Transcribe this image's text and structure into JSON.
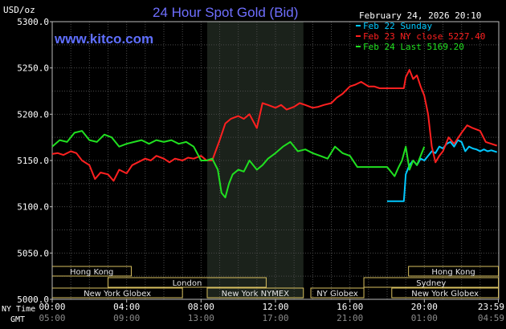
{
  "chart_data": {
    "type": "line",
    "title": "24 Hour Spot Gold (Bid)",
    "source": "www.kitco.com",
    "date_stamp": "February 24, 2026 20:10",
    "ylabel": "USD/oz",
    "ylim": [
      5000.0,
      5300.0
    ],
    "yticks": [
      "5000.0",
      "5050.0",
      "5100.0",
      "5150.0",
      "5200.0",
      "5250.0",
      "5300.0"
    ],
    "ytick_values": [
      5000,
      5050,
      5100,
      5150,
      5200,
      5250,
      5300
    ],
    "xlim": [
      0,
      24
    ],
    "xaxis_row_labels": [
      "NY Time",
      "GMT"
    ],
    "xticks_ny": [
      "00:00",
      "04:00",
      "08:00",
      "12:00",
      "16:00",
      "20:00",
      "23:59"
    ],
    "xticks_gmt": [
      "05:00",
      "09:00",
      "13:00",
      "17:00",
      "21:00",
      "01:00",
      "04:59"
    ],
    "xtick_hours": [
      0,
      4,
      8,
      12,
      16,
      20,
      23.98
    ],
    "grid": true,
    "shaded_hours": [
      8.33,
      13.5
    ],
    "legend_position": "top-right",
    "legend": [
      {
        "label": "Feb 22 Sunday",
        "color": "#00c8ff"
      },
      {
        "label": "Feb 23 NY close 5227.40",
        "color": "#ff2020"
      },
      {
        "label": "Feb 24 Last 5169.20",
        "color": "#20e020"
      }
    ],
    "series": [
      {
        "name": "Feb 22 Sunday",
        "color": "#00c8ff",
        "x": [
          18.0,
          18.9,
          18.95,
          19.0,
          19.2,
          19.4,
          19.6,
          19.8,
          20.0,
          20.2,
          20.4,
          20.6,
          20.8,
          21.0,
          21.2,
          21.4,
          21.6,
          21.8,
          22.0,
          22.2,
          22.4,
          22.6,
          22.8,
          23.0,
          23.2,
          23.4,
          23.6,
          23.9
        ],
        "y": [
          5106,
          5106,
          5120,
          5135,
          5145,
          5150,
          5145,
          5152,
          5150,
          5155,
          5160,
          5158,
          5165,
          5163,
          5168,
          5170,
          5165,
          5172,
          5170,
          5160,
          5165,
          5163,
          5162,
          5160,
          5162,
          5160,
          5161,
          5159
        ]
      },
      {
        "name": "Feb 23 NY close 5227.40",
        "color": "#ff2020",
        "x": [
          0.0,
          0.3,
          0.6,
          1.0,
          1.3,
          1.6,
          2.0,
          2.3,
          2.6,
          3.0,
          3.3,
          3.6,
          4.0,
          4.3,
          4.6,
          5.0,
          5.3,
          5.6,
          6.0,
          6.3,
          6.6,
          7.0,
          7.3,
          7.6,
          8.0,
          8.3,
          8.6,
          9.0,
          9.3,
          9.6,
          10.0,
          10.3,
          10.6,
          11.0,
          11.3,
          11.6,
          12.0,
          12.3,
          12.6,
          13.0,
          13.3,
          13.6,
          14.0,
          14.3,
          14.6,
          15.0,
          15.3,
          15.6,
          16.0,
          16.3,
          16.6,
          17.0,
          17.3,
          17.6,
          18.0,
          18.3,
          18.6,
          18.9,
          19.0,
          19.2,
          19.4,
          19.6,
          19.8,
          20.0,
          20.2,
          20.4,
          20.6,
          20.8,
          21.0,
          21.3,
          21.6,
          22.0,
          22.3,
          22.6,
          23.0,
          23.3,
          23.6,
          23.9
        ],
        "y": [
          5157,
          5158,
          5156,
          5160,
          5158,
          5150,
          5145,
          5130,
          5137,
          5135,
          5128,
          5140,
          5136,
          5145,
          5148,
          5152,
          5150,
          5155,
          5152,
          5148,
          5152,
          5150,
          5153,
          5152,
          5155,
          5150,
          5150,
          5172,
          5190,
          5195,
          5198,
          5195,
          5200,
          5185,
          5212,
          5210,
          5207,
          5210,
          5205,
          5208,
          5212,
          5210,
          5207,
          5208,
          5210,
          5212,
          5218,
          5222,
          5230,
          5232,
          5235,
          5230,
          5230,
          5228,
          5228,
          5228,
          5228,
          5228,
          5240,
          5248,
          5238,
          5242,
          5230,
          5220,
          5200,
          5165,
          5148,
          5155,
          5160,
          5175,
          5168,
          5180,
          5188,
          5185,
          5182,
          5170,
          5168,
          5166
        ]
      },
      {
        "name": "Feb 24 Last 5169.20",
        "color": "#20e020",
        "x": [
          0.0,
          0.4,
          0.8,
          1.2,
          1.6,
          2.0,
          2.4,
          2.8,
          3.2,
          3.6,
          4.0,
          4.4,
          4.8,
          5.2,
          5.6,
          6.0,
          6.4,
          6.8,
          7.2,
          7.6,
          8.0,
          8.3,
          8.6,
          8.9,
          9.1,
          9.3,
          9.5,
          9.7,
          10.0,
          10.3,
          10.6,
          11.0,
          11.3,
          11.6,
          12.0,
          12.4,
          12.8,
          13.2,
          13.6,
          14.0,
          14.4,
          14.8,
          15.2,
          15.6,
          16.0,
          16.4,
          16.8,
          17.2,
          17.6,
          18.0,
          18.4,
          18.6,
          18.8,
          19.0,
          19.2,
          19.4,
          19.6,
          19.8,
          20.0
        ],
        "y": [
          5165,
          5172,
          5170,
          5180,
          5182,
          5172,
          5170,
          5178,
          5175,
          5165,
          5168,
          5170,
          5172,
          5168,
          5172,
          5170,
          5172,
          5168,
          5170,
          5165,
          5150,
          5150,
          5152,
          5140,
          5115,
          5110,
          5125,
          5135,
          5140,
          5138,
          5150,
          5140,
          5145,
          5152,
          5158,
          5165,
          5170,
          5160,
          5162,
          5158,
          5155,
          5152,
          5165,
          5158,
          5155,
          5143,
          5143,
          5143,
          5143,
          5143,
          5133,
          5142,
          5150,
          5165,
          5140,
          5150,
          5145,
          5155,
          5165
        ]
      }
    ],
    "sessions": [
      {
        "label": "Hong Kong",
        "start": 0.0,
        "end": 4.25,
        "row": 0,
        "open_left": true
      },
      {
        "label": "London",
        "start": 3.0,
        "end": 11.5,
        "row": 1,
        "open_left": false
      },
      {
        "label": "New York Globex",
        "start": 0.0,
        "end": 7.0,
        "row": 2,
        "open_left": true
      },
      {
        "label": "New York NYMEX",
        "start": 8.33,
        "end": 13.5,
        "row": 2,
        "open_left": false
      },
      {
        "label": "NY Globex",
        "start": 13.9,
        "end": 16.75,
        "row": 2,
        "open_left": false
      },
      {
        "label": "Sydney",
        "start": 16.75,
        "end": 23.98,
        "row": 1,
        "open_left": false
      },
      {
        "label": "Hong Kong",
        "start": 19.15,
        "end": 23.98,
        "row": 0,
        "open_left": false
      },
      {
        "label": "New York Globex",
        "start": 18.25,
        "end": 23.98,
        "row": 2,
        "open_left": false
      }
    ]
  }
}
